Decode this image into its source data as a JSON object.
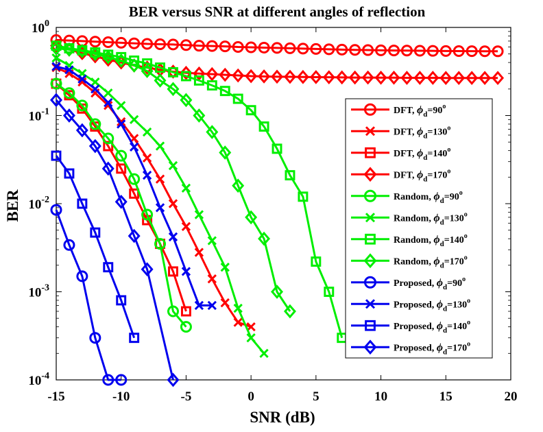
{
  "chart_data": {
    "type": "line",
    "title": "BER versus SNR at different angles of reflection",
    "xlabel": "SNR (dB)",
    "ylabel": "BER",
    "xlim": [
      -15,
      20
    ],
    "ylim": [
      0.0001,
      1
    ],
    "yscale": "log",
    "grid": false,
    "legend_position": "right",
    "x_ticks": [
      -15,
      -10,
      -5,
      0,
      5,
      10,
      15,
      20
    ],
    "x_tick_labels": [
      "-15",
      "-10",
      "-5",
      "0",
      "5",
      "10",
      "15",
      "20"
    ],
    "y_ticks": [
      0.0001,
      0.001,
      0.01,
      0.1,
      1
    ],
    "y_tick_labels": [
      {
        "base": "10",
        "exp": "-4"
      },
      {
        "base": "10",
        "exp": "-3"
      },
      {
        "base": "10",
        "exp": "-2"
      },
      {
        "base": "10",
        "exp": "-1"
      },
      {
        "base": "10",
        "exp": "0"
      }
    ],
    "colors": {
      "DFT": "#ff0000",
      "Random": "#00ee00",
      "Proposed": "#0000ee"
    },
    "series": [
      {
        "name": "DFT",
        "angle": "90",
        "color": "#ff0000",
        "marker": "circle",
        "x": [
          -15,
          -14,
          -13,
          -12,
          -11,
          -10,
          -9,
          -8,
          -7,
          -6,
          -5,
          -4,
          -3,
          -2,
          -1,
          0,
          1,
          2,
          3,
          4,
          5,
          6,
          7,
          8,
          9,
          10,
          11,
          12,
          13,
          14,
          15,
          16,
          17,
          18,
          19
        ],
        "y": [
          0.72,
          0.71,
          0.7,
          0.69,
          0.68,
          0.67,
          0.66,
          0.65,
          0.645,
          0.64,
          0.63,
          0.62,
          0.615,
          0.61,
          0.6,
          0.595,
          0.59,
          0.585,
          0.58,
          0.575,
          0.57,
          0.565,
          0.56,
          0.556,
          0.553,
          0.55,
          0.548,
          0.546,
          0.544,
          0.542,
          0.54,
          0.539,
          0.538,
          0.537,
          0.536
        ]
      },
      {
        "name": "DFT",
        "angle": "130",
        "color": "#ff0000",
        "marker": "x",
        "x": [
          -15,
          -14,
          -13,
          -12,
          -11,
          -10,
          -9,
          -8,
          -7,
          -6,
          -5,
          -4,
          -3,
          -2,
          -1,
          0
        ],
        "y": [
          0.35,
          0.3,
          0.24,
          0.18,
          0.13,
          0.085,
          0.055,
          0.033,
          0.019,
          0.01,
          0.0055,
          0.0028,
          0.0014,
          0.00075,
          0.00045,
          0.0004
        ]
      },
      {
        "name": "DFT",
        "angle": "140",
        "color": "#ff0000",
        "marker": "square",
        "x": [
          -15,
          -14,
          -13,
          -12,
          -11,
          -10,
          -9,
          -8,
          -7,
          -6,
          -5
        ],
        "y": [
          0.23,
          0.17,
          0.12,
          0.075,
          0.045,
          0.025,
          0.013,
          0.0065,
          0.0035,
          0.0017,
          0.0006
        ]
      },
      {
        "name": "DFT",
        "angle": "170",
        "color": "#ff0000",
        "marker": "diamond",
        "x": [
          -15,
          -14,
          -13,
          -12,
          -11,
          -10,
          -9,
          -8,
          -7,
          -6,
          -5,
          -4,
          -3,
          -2,
          -1,
          0,
          1,
          2,
          3,
          4,
          5,
          6,
          7,
          8,
          9,
          10,
          11,
          12,
          13,
          14,
          15,
          16,
          17,
          18,
          19
        ],
        "y": [
          0.62,
          0.56,
          0.51,
          0.47,
          0.43,
          0.4,
          0.37,
          0.35,
          0.33,
          0.315,
          0.305,
          0.3,
          0.295,
          0.29,
          0.285,
          0.28,
          0.278,
          0.276,
          0.275,
          0.274,
          0.273,
          0.272,
          0.271,
          0.27,
          0.27,
          0.269,
          0.269,
          0.268,
          0.268,
          0.268,
          0.267,
          0.267,
          0.267,
          0.267,
          0.267
        ]
      },
      {
        "name": "Random",
        "angle": "90",
        "color": "#00ee00",
        "marker": "circle",
        "x": [
          -15,
          -14,
          -13,
          -12,
          -11,
          -10,
          -9,
          -8,
          -7,
          -6,
          -5
        ],
        "y": [
          0.23,
          0.18,
          0.13,
          0.08,
          0.055,
          0.035,
          0.019,
          0.0075,
          0.0035,
          0.0006,
          0.0004
        ]
      },
      {
        "name": "Random",
        "angle": "130",
        "color": "#00ee00",
        "marker": "x",
        "x": [
          -15,
          -14,
          -13,
          -12,
          -11,
          -10,
          -9,
          -8,
          -7,
          -6,
          -5,
          -4,
          -3,
          -2,
          -1,
          0,
          1
        ],
        "y": [
          0.45,
          0.37,
          0.3,
          0.24,
          0.18,
          0.13,
          0.09,
          0.065,
          0.045,
          0.027,
          0.015,
          0.0075,
          0.0038,
          0.0019,
          0.00065,
          0.0003,
          0.0002
        ]
      },
      {
        "name": "Random",
        "angle": "140",
        "color": "#00ee00",
        "marker": "square",
        "x": [
          -15,
          -14,
          -13,
          -12,
          -11,
          -10,
          -9,
          -8,
          -7,
          -6,
          -5,
          -4,
          -3,
          -2,
          -1,
          0,
          1,
          2,
          3,
          4,
          5,
          6,
          7
        ],
        "y": [
          0.62,
          0.58,
          0.55,
          0.52,
          0.49,
          0.46,
          0.42,
          0.39,
          0.35,
          0.31,
          0.28,
          0.25,
          0.22,
          0.19,
          0.155,
          0.115,
          0.075,
          0.042,
          0.021,
          0.012,
          0.0022,
          0.001,
          0.0003
        ]
      },
      {
        "name": "Random",
        "angle": "170",
        "color": "#00ee00",
        "marker": "diamond",
        "x": [
          -15,
          -14,
          -13,
          -12,
          -11,
          -10,
          -9,
          -8,
          -7,
          -6,
          -5,
          -4,
          -3,
          -2,
          -1,
          0,
          1,
          2,
          3
        ],
        "y": [
          0.58,
          0.56,
          0.54,
          0.5,
          0.46,
          0.42,
          0.37,
          0.32,
          0.25,
          0.2,
          0.15,
          0.1,
          0.065,
          0.038,
          0.016,
          0.007,
          0.004,
          0.001,
          0.0006
        ]
      },
      {
        "name": "Proposed",
        "angle": "90",
        "color": "#0000ee",
        "marker": "circle",
        "x": [
          -15,
          -14,
          -13,
          -12,
          -11,
          -10
        ],
        "y": [
          0.0085,
          0.0034,
          0.0015,
          0.0003,
          0.0001,
          0.0001
        ]
      },
      {
        "name": "Proposed",
        "angle": "130",
        "color": "#0000ee",
        "marker": "x",
        "x": [
          -15,
          -14,
          -13,
          -12,
          -11,
          -10,
          -9,
          -8,
          -7,
          -6,
          -5,
          -4,
          -3
        ],
        "y": [
          0.36,
          0.33,
          0.26,
          0.2,
          0.14,
          0.08,
          0.044,
          0.021,
          0.009,
          0.0042,
          0.0017,
          0.0007,
          0.0007
        ]
      },
      {
        "name": "Proposed",
        "angle": "140",
        "color": "#0000ee",
        "marker": "square",
        "x": [
          -15,
          -14,
          -13,
          -12,
          -11,
          -10,
          -9
        ],
        "y": [
          0.035,
          0.022,
          0.01,
          0.0047,
          0.0019,
          0.0008,
          0.0003
        ]
      },
      {
        "name": "Proposed",
        "angle": "170",
        "color": "#0000ee",
        "marker": "diamond",
        "x": [
          -15,
          -14,
          -13,
          -12,
          -11,
          -10,
          -9,
          -8,
          -6
        ],
        "y": [
          0.15,
          0.1,
          0.068,
          0.045,
          0.025,
          0.0105,
          0.0043,
          0.0018,
          0.0001
        ]
      }
    ]
  }
}
